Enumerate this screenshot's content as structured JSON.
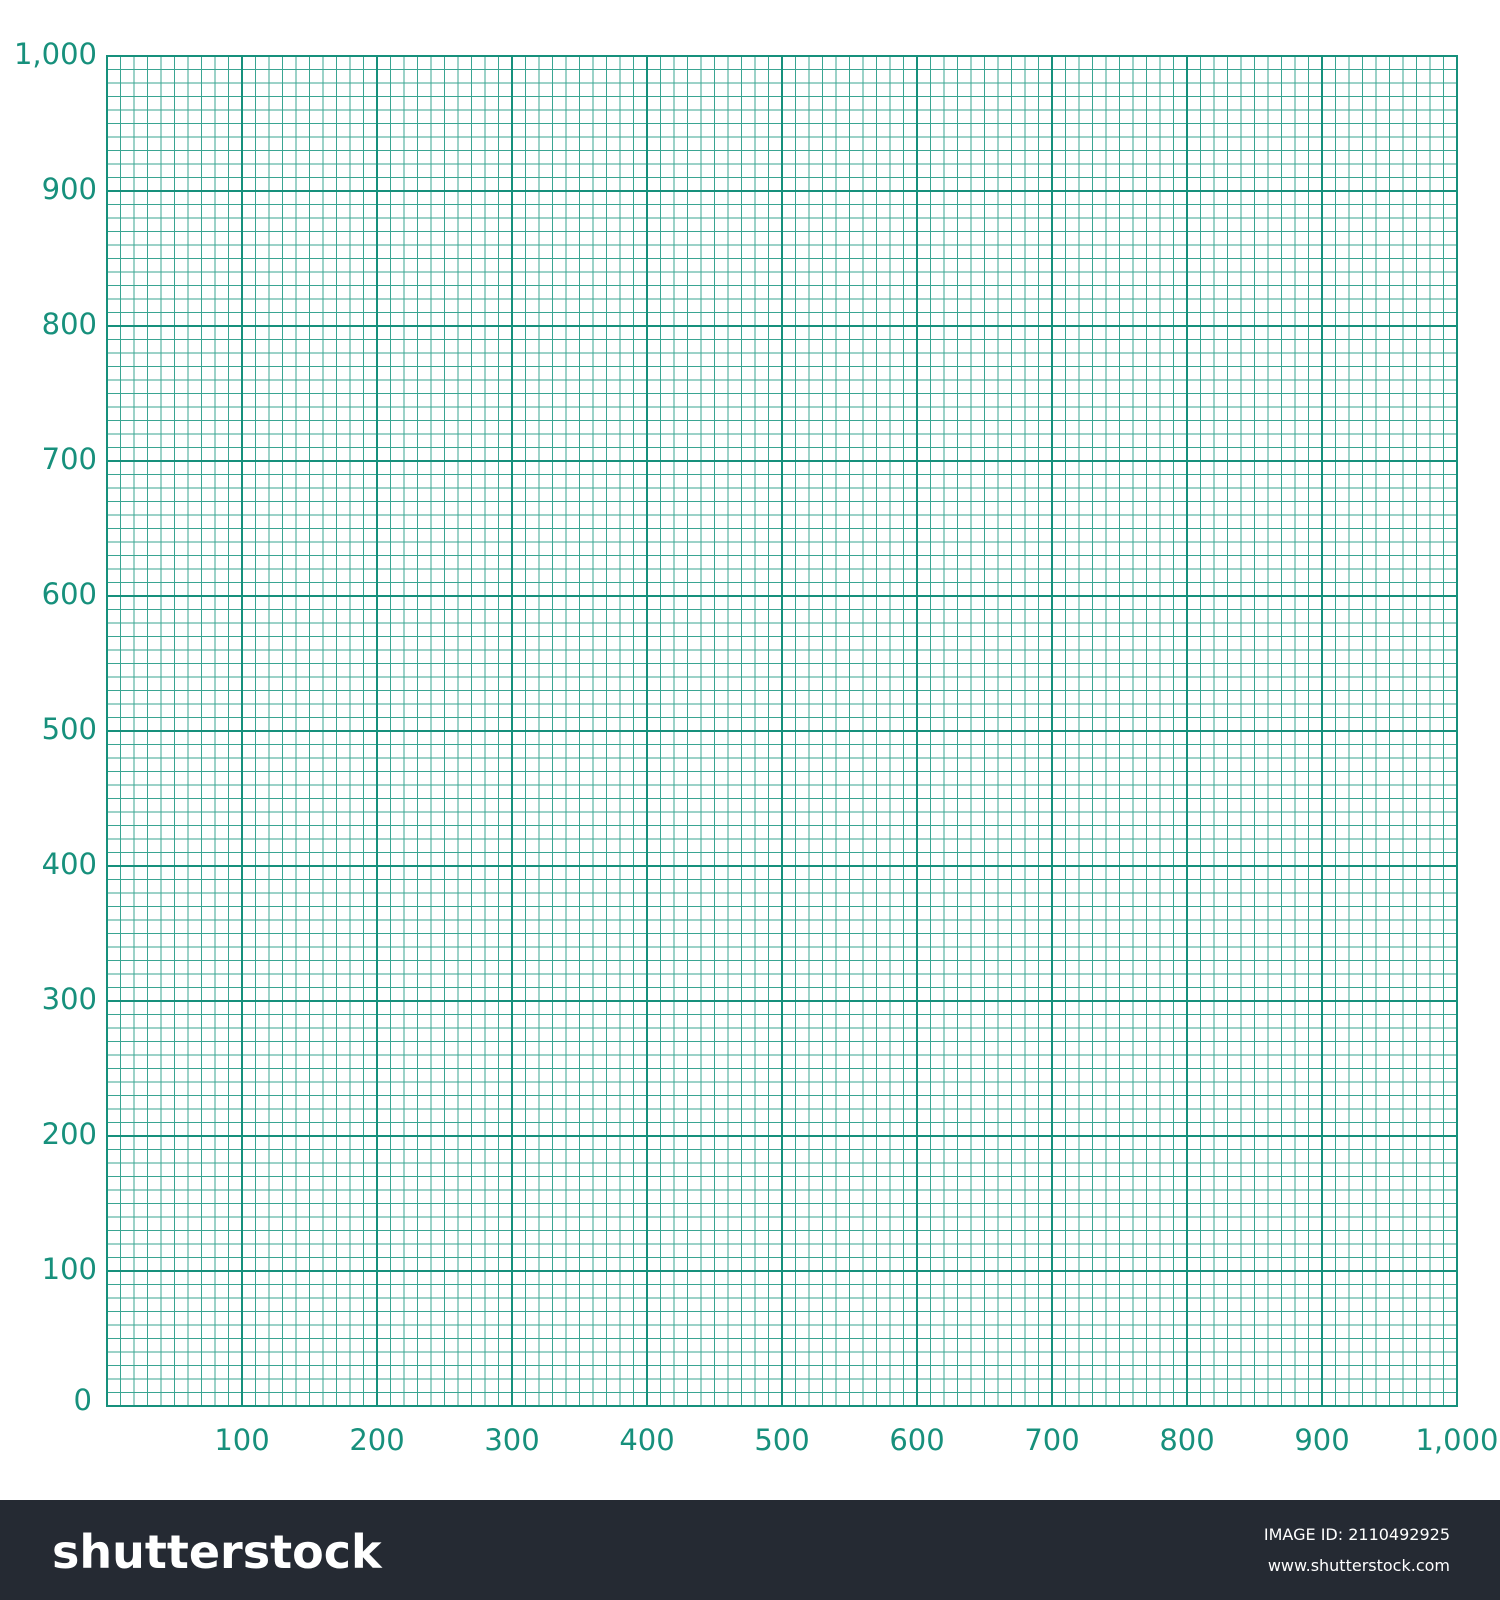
{
  "chart_data": {
    "type": "grid",
    "xlim": [
      0,
      1000
    ],
    "ylim": [
      0,
      1000
    ],
    "xticks": [
      100,
      200,
      300,
      400,
      500,
      600,
      700,
      800,
      900,
      {
        "value": 1000,
        "label": "1,000"
      }
    ],
    "yticks": [
      0,
      100,
      200,
      300,
      400,
      500,
      600,
      700,
      800,
      900,
      {
        "value": 1000,
        "label": "1,000"
      }
    ],
    "minor_divisions": 10,
    "grid": true,
    "color": "#17907c"
  },
  "footer": {
    "brand": "shutterstock",
    "image_id": "IMAGE ID: 2110492925",
    "url": "www.shutterstock.com"
  }
}
